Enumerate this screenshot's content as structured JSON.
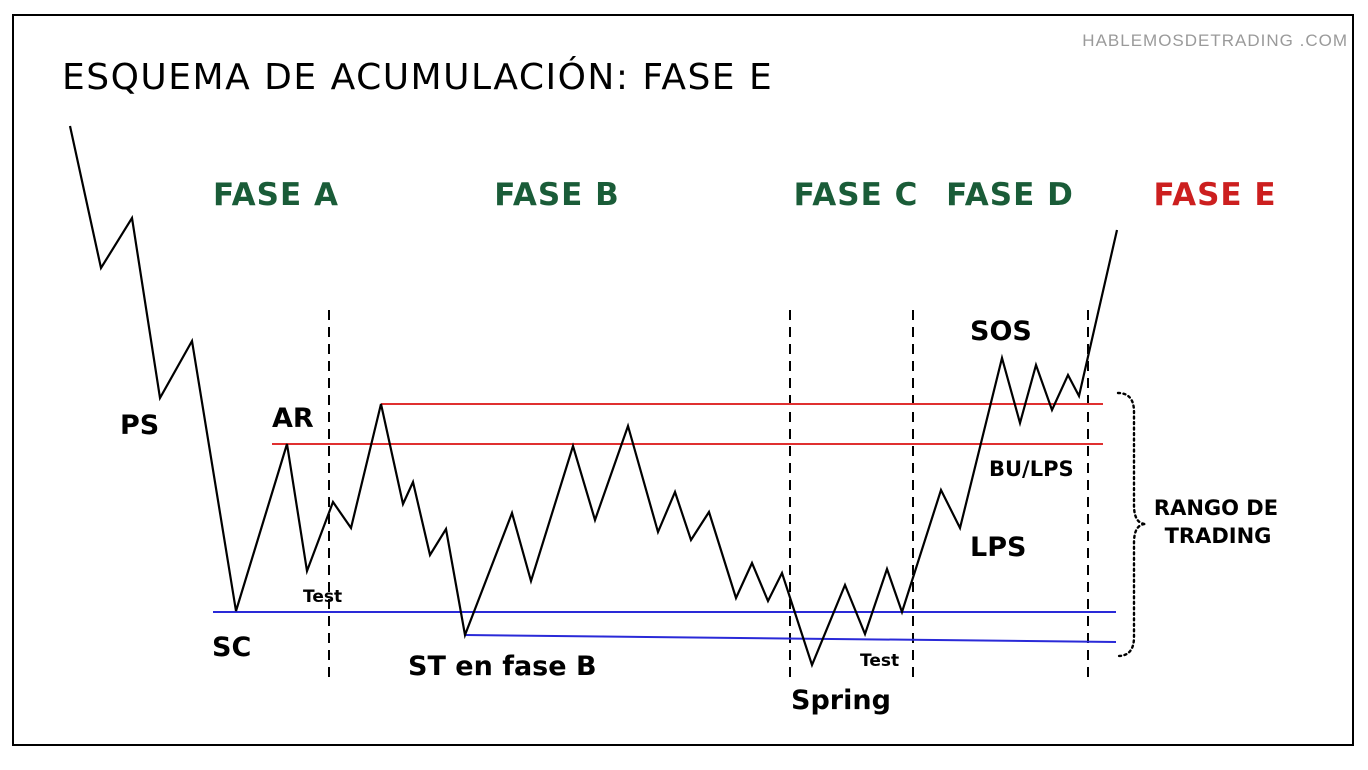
{
  "title": "ESQUEMA DE ACUMULACIÓN: FASE E",
  "watermark": "HABLEMOSDETRADING .COM",
  "colors": {
    "phase_green": "#1a5c38",
    "phase_highlight": "#cc1f1f",
    "resistance_line": "#e03030",
    "support_line": "#2a2ad8",
    "price_line": "#000000"
  },
  "phases": {
    "a": "FASE A",
    "b": "FASE B",
    "c": "FASE C",
    "d": "FASE D",
    "e": "FASE E"
  },
  "events": {
    "ps": "PS",
    "sc": "SC",
    "ar": "AR",
    "test_a": "Test",
    "st_b": "ST en fase B",
    "spring": "Spring",
    "test_c": "Test",
    "sos": "SOS",
    "bu_lps": "BU/LPS",
    "lps": "LPS"
  },
  "range": {
    "line1": "RANGO DE",
    "line2": "TRADING"
  }
}
